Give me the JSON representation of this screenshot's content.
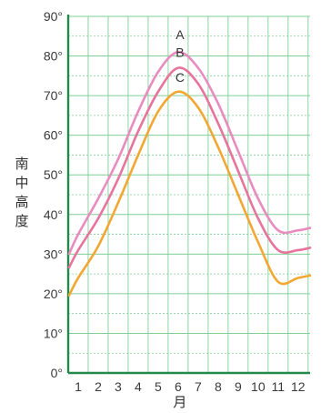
{
  "chart_data": {
    "type": "line",
    "title": "",
    "xlabel": "月",
    "ylabel": "南中高度",
    "x": [
      1,
      2,
      3,
      4,
      5,
      6,
      7,
      8,
      9,
      10,
      11,
      12
    ],
    "x_tick_labels": [
      "1",
      "2",
      "3",
      "4",
      "5",
      "6",
      "7",
      "8",
      "9",
      "10",
      "11",
      "12"
    ],
    "y_tick_labels": [
      "0°",
      "10°",
      "20°",
      "30°",
      "40°",
      "50°",
      "60°",
      "70°",
      "80°",
      "90°"
    ],
    "xlim": [
      0.5,
      12.6
    ],
    "ylim": [
      0,
      90
    ],
    "grid": true,
    "series": [
      {
        "name": "A",
        "color": "#e98bbf",
        "values": [
          35,
          44,
          54,
          66,
          76,
          81,
          77,
          68,
          56,
          44,
          36,
          36
        ]
      },
      {
        "name": "B",
        "color": "#e8739c",
        "values": [
          31,
          39,
          49,
          61,
          71,
          77,
          73,
          63,
          51,
          39,
          31,
          31
        ]
      },
      {
        "name": "C",
        "color": "#f2a733",
        "values": [
          24,
          32,
          43,
          55,
          66,
          71,
          67,
          57,
          45,
          33,
          23,
          24
        ]
      }
    ]
  }
}
